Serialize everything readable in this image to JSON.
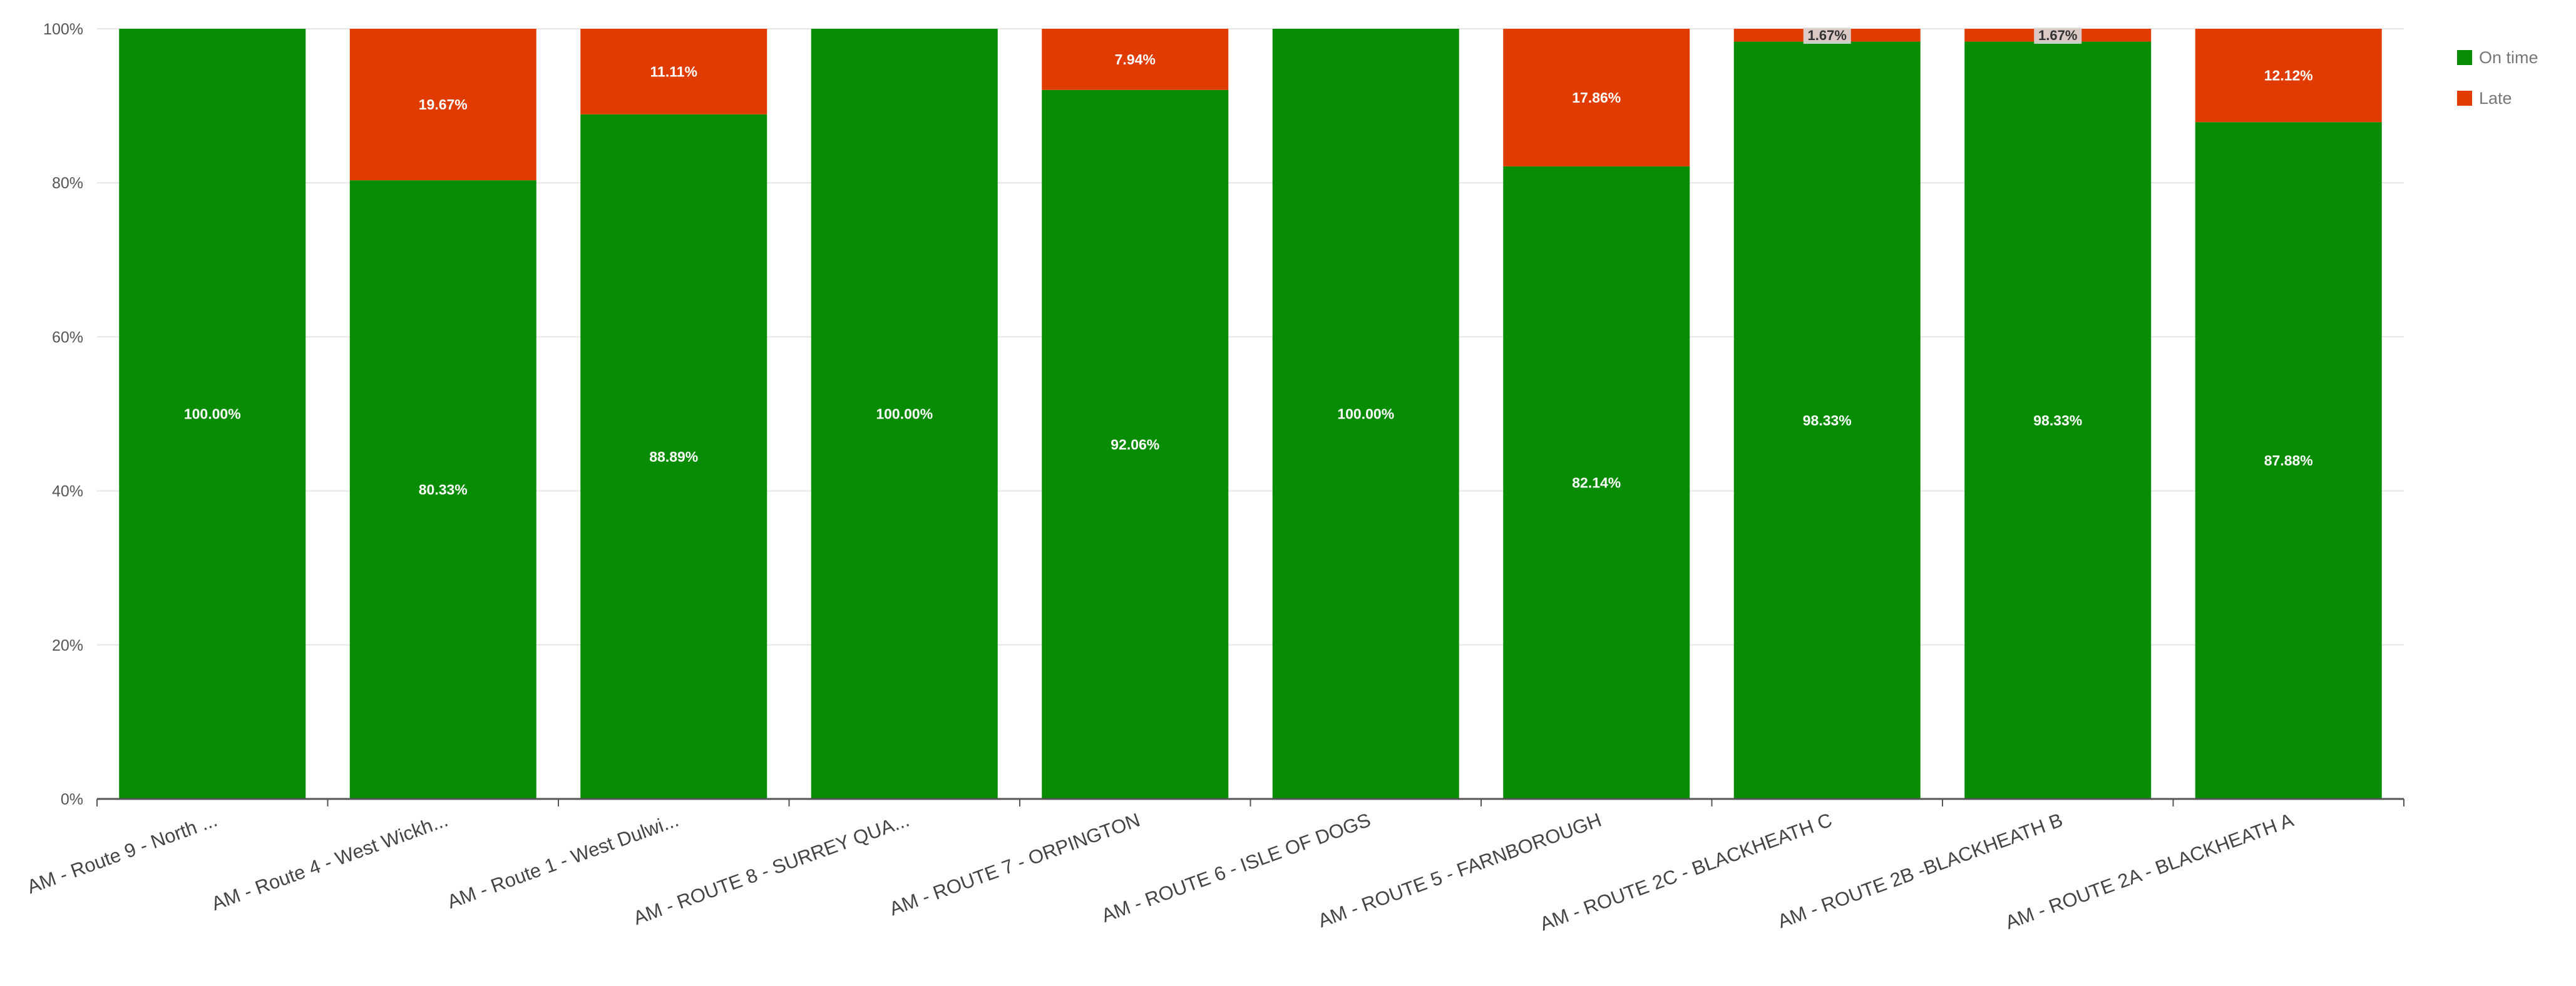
{
  "chart_data": {
    "type": "bar",
    "stacked": "percent",
    "categories": [
      "AM - Route 9 - North ...",
      "AM - Route 4 - West Wickh...",
      "AM - Route 1 - West Dulwi...",
      "AM - ROUTE 8 - SURREY QUA...",
      "AM - ROUTE 7 - ORPINGTON",
      "AM - ROUTE 6 - ISLE OF DOGS",
      "AM - ROUTE 5 - FARNBOROUGH",
      "AM - ROUTE 2C - BLACKHEATH C",
      "AM - ROUTE 2B -BLACKHEATH B",
      "AM - ROUTE 2A - BLACKHEATH A"
    ],
    "series": [
      {
        "name": "On time",
        "color": "#078c03",
        "values": [
          100.0,
          80.33,
          88.89,
          100.0,
          92.06,
          100.0,
          82.14,
          98.33,
          98.33,
          87.88
        ],
        "labels": [
          "100.00%",
          "80.33%",
          "88.89%",
          "100.00%",
          "92.06%",
          "100.00%",
          "82.14%",
          "98.33%",
          "98.33%",
          "87.88%"
        ]
      },
      {
        "name": "Late",
        "color": "#e03b00",
        "values": [
          0,
          19.67,
          11.11,
          0,
          7.94,
          0,
          17.86,
          1.67,
          1.67,
          12.12
        ],
        "labels": [
          "",
          "19.67%",
          "11.11%",
          "",
          "7.94%",
          "",
          "17.86%",
          "1.67%",
          "1.67%",
          "12.12%"
        ]
      }
    ],
    "ylim": [
      0,
      100
    ],
    "yticks": [
      0,
      20,
      40,
      60,
      80,
      100
    ],
    "ytick_labels": [
      "0%",
      "20%",
      "40%",
      "60%",
      "80%",
      "100%"
    ],
    "grid": true,
    "legend_position": "top-right",
    "title": "",
    "xlabel": "",
    "ylabel": ""
  }
}
